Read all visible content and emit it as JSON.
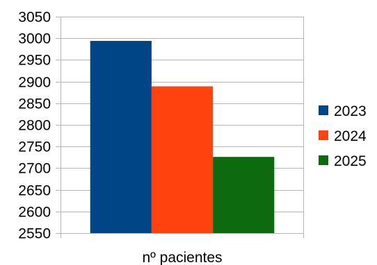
{
  "chart_data": {
    "type": "bar",
    "categories": [
      "nº pacientes"
    ],
    "series": [
      {
        "name": "2023",
        "values": [
          2994
        ],
        "color": "#004586"
      },
      {
        "name": "2024",
        "values": [
          2889
        ],
        "color": "#ff420e"
      },
      {
        "name": "2025",
        "values": [
          2726
        ],
        "color": "#0e6a0e"
      }
    ],
    "ylim": [
      2550,
      3050
    ],
    "ytick_step": 50,
    "grid": true,
    "legend_position": "right"
  }
}
